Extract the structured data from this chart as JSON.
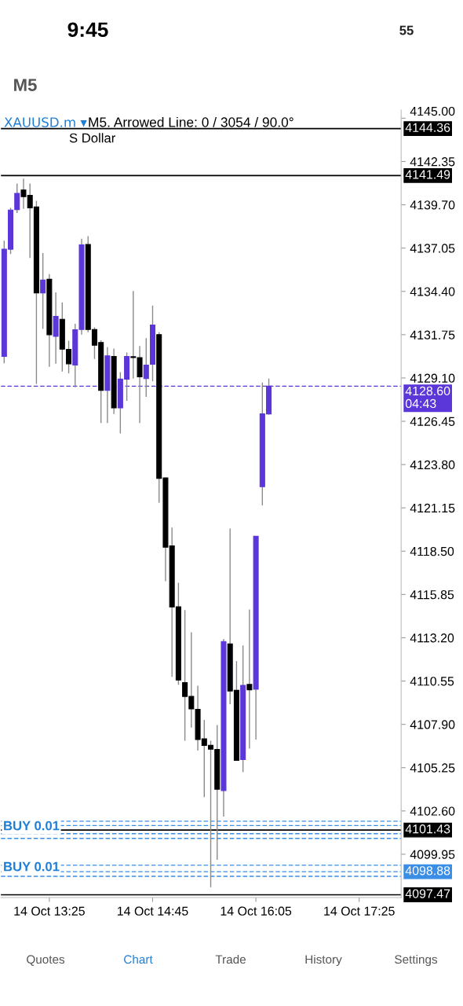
{
  "chart_data": {
    "type": "candlestick",
    "title": "XAUUSD.m ▾",
    "subtitle": "M5. Arrowed Line: 0 / 3054 / 90.0°",
    "categories": [
      null,
      null,
      null,
      null,
      null,
      null,
      null,
      "14 Oct 13:25",
      null,
      null,
      null,
      null,
      null,
      null,
      null,
      null,
      null,
      null,
      null,
      null,
      null,
      null,
      null,
      "14 Oct 14:45",
      null,
      null,
      null,
      null,
      null,
      null,
      null,
      null,
      null,
      null,
      null,
      null,
      null,
      null,
      null,
      "14 Oct 16:05",
      null,
      null,
      null,
      null,
      null,
      null,
      null,
      null,
      null,
      null,
      null,
      null,
      null,
      null,
      null,
      "14 Oct 17:25",
      null,
      null,
      null,
      null,
      null,
      null
    ],
    "ohlc": [
      [
        4130.42,
        4137.5,
        4130.0,
        4136.98
      ],
      [
        4136.98,
        4139.51,
        4136.69,
        4139.38
      ],
      [
        4139.41,
        4141.0,
        4139.2,
        4140.4
      ],
      [
        4140.6,
        4141.3,
        4139.45,
        4140.2
      ],
      [
        4140.28,
        4141.0,
        4136.44,
        4139.51
      ],
      [
        4139.57,
        4139.94,
        4128.74,
        4134.31
      ],
      [
        4134.31,
        4136.74,
        4132.1,
        4135.09
      ],
      [
        4135.14,
        4135.46,
        4129.78,
        4131.75
      ],
      [
        4131.65,
        4134.34,
        4129.97,
        4132.87
      ],
      [
        4132.69,
        4133.73,
        4129.49,
        4130.87
      ],
      [
        4130.85,
        4131.38,
        4129.38,
        4129.97
      ],
      [
        4129.89,
        4132.42,
        4128.53,
        4132.05
      ],
      [
        4132.07,
        4137.62,
        4131.75,
        4137.25
      ],
      [
        4137.27,
        4137.78,
        4131.9,
        4132.07
      ],
      [
        4132.07,
        4132.2,
        4130.26,
        4131.11
      ],
      [
        4131.27,
        4131.4,
        4126.34,
        4128.34
      ],
      [
        4128.34,
        4130.98,
        4126.34,
        4130.45
      ],
      [
        4130.42,
        4130.9,
        4126.9,
        4127.27
      ],
      [
        4127.27,
        4129.46,
        4125.7,
        4129.03
      ],
      [
        4129.03,
        4130.66,
        4127.7,
        4130.42
      ],
      [
        4130.4,
        4134.42,
        4129.06,
        4130.35
      ],
      [
        4130.34,
        4131.06,
        4126.34,
        4129.17
      ],
      [
        4129.06,
        4131.54,
        4127.94,
        4129.89
      ],
      [
        4129.94,
        4133.54,
        4128.9,
        4132.34
      ],
      [
        4131.75,
        4131.9,
        4121.46,
        4122.95
      ],
      [
        4122.98,
        4123.0,
        4116.66,
        4118.74
      ],
      [
        4118.82,
        4119.94,
        4110.81,
        4115.09
      ],
      [
        4115.09,
        4116.57,
        4110.33,
        4110.61
      ],
      [
        4110.45,
        4114.89,
        4106.9,
        4109.61
      ],
      [
        4109.61,
        4113.54,
        4107.7,
        4108.85
      ],
      [
        4108.82,
        4110.26,
        4106.29,
        4106.97
      ],
      [
        4107.01,
        4108.17,
        4103.45,
        4106.61
      ],
      [
        4106.62,
        4106.9,
        4097.93,
        4106.38
      ],
      [
        4106.37,
        4107.86,
        4099.61,
        4103.93
      ],
      [
        4103.85,
        4113.13,
        4102.25,
        4112.97
      ],
      [
        4112.82,
        4119.89,
        4109.13,
        4109.94
      ],
      [
        4109.98,
        4111.77,
        4105.7,
        4105.7
      ],
      [
        4105.74,
        4112.73,
        4104.98,
        4110.29
      ],
      [
        4110.34,
        4114.93,
        4106.42,
        4110.02
      ],
      [
        4110.05,
        4119.41,
        4106.97,
        4119.41
      ],
      [
        4122.45,
        4128.82,
        4121.3,
        4126.9
      ],
      [
        4126.9,
        4129.06,
        4126.85,
        4128.6
      ],
      null,
      null,
      null,
      null,
      null,
      null,
      null,
      null,
      null,
      null,
      null,
      null,
      null,
      null,
      null,
      null,
      null,
      null,
      null,
      null
    ],
    "colors": [
      "#5b36d8",
      "#5b36d8",
      "#5b36d8",
      "#000000",
      "#000000",
      "#000000",
      "#5b36d8",
      "#000000",
      "#5b36d8",
      "#000000",
      "#000000",
      "#5b36d8",
      "#5b36d8",
      "#000000",
      "#000000",
      "#000000",
      "#5b36d8",
      "#000000",
      "#5b36d8",
      "#5b36d8",
      "#000000",
      "#000000",
      "#5b36d8",
      "#5b36d8",
      "#000000",
      "#000000",
      "#000000",
      "#000000",
      "#000000",
      "#000000",
      "#000000",
      "#000000",
      "#000000",
      "#000000",
      "#5b36d8",
      "#000000",
      "#000000",
      "#5b36d8",
      "#000000",
      "#5b36d8",
      "#5b36d8",
      "#5b36d8",
      null,
      null,
      null,
      null,
      null,
      null,
      null,
      null,
      null,
      null,
      null,
      null,
      null,
      null,
      null,
      null,
      null,
      null,
      null,
      null
    ],
    "ylim": [
      4097.3,
      4145.5
    ],
    "yticks": [
      {
        "value": 4145.0,
        "label": "4145.00"
      },
      {
        "value": 4142.35,
        "label": "4142.35"
      },
      {
        "value": 4139.7,
        "label": "4139.70"
      },
      {
        "value": 4137.05,
        "label": "4137.05"
      },
      {
        "value": 4134.4,
        "label": "4134.40"
      },
      {
        "value": 4131.75,
        "label": "4131.75"
      },
      {
        "value": 4129.1,
        "label": "4129.10"
      },
      {
        "value": 4126.45,
        "label": "4126.45"
      },
      {
        "value": 4123.8,
        "label": "4123.80"
      },
      {
        "value": 4121.15,
        "label": "4121.15"
      },
      {
        "value": 4118.5,
        "label": "4118.50"
      },
      {
        "value": 4115.85,
        "label": "4115.85"
      },
      {
        "value": 4113.2,
        "label": "4113.20"
      },
      {
        "value": 4110.55,
        "label": "4110.55"
      },
      {
        "value": 4107.9,
        "label": "4107.90"
      },
      {
        "value": 4105.25,
        "label": "4105.25"
      },
      {
        "value": 4102.6,
        "label": "4102.60"
      },
      {
        "value": 4099.95,
        "label": "4099.95"
      }
    ],
    "ref_lines": [
      {
        "axis": "y",
        "value": 4144.36,
        "label": "4144.36",
        "color": "#000000"
      },
      {
        "axis": "y",
        "value": 4141.49,
        "label": "4141.49",
        "color": "#000000"
      },
      {
        "axis": "y",
        "value": 4128.6,
        "label": "4128.60\n04:43",
        "color": "#5b36d8",
        "line_style": "dashed"
      },
      {
        "axis": "y",
        "value": 4101.97,
        "color": "#3a8ee6",
        "line_style": "dashed"
      },
      {
        "axis": "y",
        "value": 4101.71,
        "color": "#3a8ee6",
        "line_style": "dashed"
      },
      {
        "axis": "y",
        "value": 4101.43,
        "label": "4101.43",
        "color": "#000000"
      },
      {
        "axis": "y",
        "value": 4101.21,
        "color": "#3a8ee6",
        "line_style": "dashed"
      },
      {
        "axis": "y",
        "value": 4100.92,
        "color": "#3a8ee6",
        "line_style": "dashed"
      },
      {
        "axis": "y",
        "value": 4099.28,
        "color": "#3a8ee6",
        "line_style": "dashed"
      },
      {
        "axis": "y",
        "value": 4098.88,
        "label": "4098.88",
        "color": "#3a8ee6",
        "line_style": "dashed"
      },
      {
        "axis": "y",
        "value": 4098.6,
        "color": "#3a8ee6",
        "line_style": "dashed"
      },
      {
        "axis": "y",
        "value": 4097.47,
        "label": "4097.47",
        "color": "#000000"
      }
    ],
    "annotations": [
      "S Dollar",
      "BUY 0.01",
      "BUY 0.01",
      "9:45",
      "55",
      "M5",
      "Quotes",
      "Chart",
      "Trade",
      "History",
      "Settings"
    ]
  }
}
